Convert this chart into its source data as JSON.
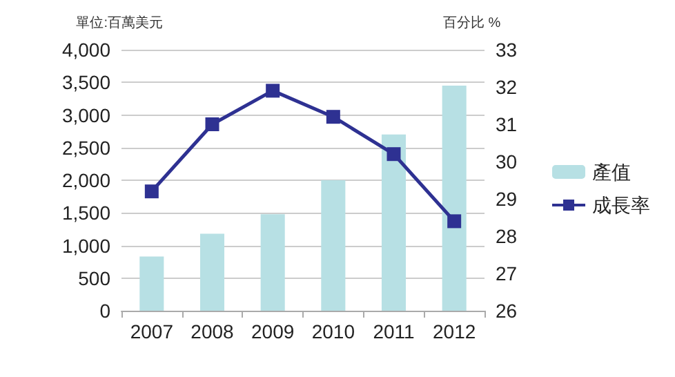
{
  "chart_data": {
    "type": "bar",
    "ylabel": "單位:百萬美元",
    "y2label": "百分比 %",
    "categories": [
      "2007",
      "2008",
      "2009",
      "2010",
      "2011",
      "2012"
    ],
    "series": [
      {
        "name": "產值",
        "color": "#b7e0e4",
        "values": [
          830,
          1180,
          1480,
          2000,
          2700,
          3450
        ]
      },
      {
        "name": "成長率",
        "type": "line",
        "axis": "y2",
        "color": "#2e3192",
        "marker": "square",
        "values": [
          29.2,
          31.0,
          31.9,
          31.2,
          30.2,
          28.4
        ]
      }
    ],
    "ylim": [
      0,
      4000
    ],
    "yticks": [
      {
        "value": 0,
        "label": "0"
      },
      {
        "value": 500,
        "label": "500"
      },
      {
        "value": 1000,
        "label": "1,000"
      },
      {
        "value": 1500,
        "label": "1,500"
      },
      {
        "value": 2000,
        "label": "2,000"
      },
      {
        "value": 2500,
        "label": "2,500"
      },
      {
        "value": 3000,
        "label": "3,000"
      },
      {
        "value": 3500,
        "label": "3,500"
      },
      {
        "value": 4000,
        "label": "4,000"
      }
    ],
    "y2lim": [
      26,
      33
    ],
    "y2ticks": [
      26,
      27,
      28,
      29,
      30,
      31,
      32,
      33
    ],
    "grid": "y",
    "legend": "right"
  }
}
